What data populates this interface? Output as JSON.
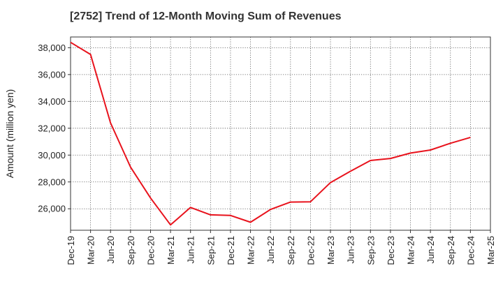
{
  "chart_data": {
    "type": "line",
    "title": "[2752]  Trend of 12-Month Moving Sum of Revenues",
    "xlabel": "",
    "ylabel": "Amount (million yen)",
    "ylim": [
      24400,
      38800
    ],
    "yticks": [
      26000,
      28000,
      30000,
      32000,
      34000,
      36000,
      38000
    ],
    "ytick_labels": [
      "26,000",
      "28,000",
      "30,000",
      "32,000",
      "34,000",
      "36,000",
      "38,000"
    ],
    "xtick_labels": [
      "Dec-19",
      "Mar-20",
      "Jun-20",
      "Sep-20",
      "Dec-20",
      "Mar-21",
      "Jun-21",
      "Sep-21",
      "Dec-21",
      "Mar-22",
      "Jun-22",
      "Sep-22",
      "Dec-22",
      "Mar-23",
      "Jun-23",
      "Sep-23",
      "Dec-23",
      "Mar-24",
      "Jun-24",
      "Sep-24",
      "Dec-24",
      "Mar-25"
    ],
    "grid": true,
    "series": [
      {
        "color": "#e8121c",
        "x": [
          "Dec-19",
          "Mar-20",
          "Jun-20",
          "Sep-20",
          "Dec-20",
          "Mar-21",
          "Jun-21",
          "Sep-21",
          "Dec-21",
          "Mar-22",
          "Jun-22",
          "Sep-22",
          "Dec-22",
          "Mar-23",
          "Jun-23",
          "Sep-23",
          "Dec-23",
          "Mar-24",
          "Jun-24",
          "Sep-24",
          "Dec-24"
        ],
        "values": [
          38400,
          37500,
          32400,
          29100,
          26800,
          24800,
          26100,
          25550,
          25500,
          25000,
          25950,
          26500,
          26520,
          27950,
          28800,
          29600,
          29750,
          30150,
          30380,
          30880,
          31320
        ]
      }
    ]
  }
}
